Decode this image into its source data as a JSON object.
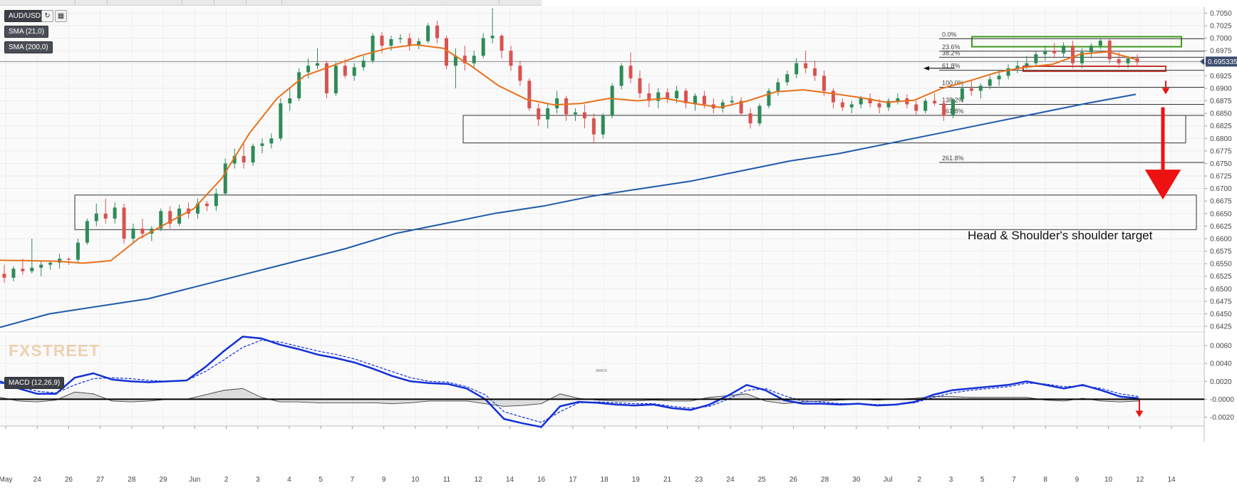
{
  "header": {
    "symbol": "AUD/USD",
    "sma_fast": "SMA (21,0)",
    "sma_slow": "SMA (200,0)",
    "macd_label": "MACD (12,26,9)",
    "watermark": "FXSTREET",
    "current_price": "0.695335"
  },
  "colors": {
    "sma_fast": "#e8711d",
    "sma_slow": "#1f5aa8",
    "candle_up": "#2e8b57",
    "candle_down": "#d9534f",
    "macd_line": "#1330d6",
    "signal_line": "#1330d6",
    "arrow": "#ee1111",
    "resistance_box": "#3d9a1c",
    "neckline_box": "#c0392b"
  },
  "chart_data": [
    {
      "type": "line",
      "title": "AUD/USD",
      "xlabel": "",
      "ylabel": "",
      "y_ticks": [
        "0.7050",
        "0.7025",
        "0.7000",
        "0.6975",
        "0.6950",
        "0.6925",
        "0.6900",
        "0.6875",
        "0.6850",
        "0.6825",
        "0.6800",
        "0.6775",
        "0.6750",
        "0.6725",
        "0.6700",
        "0.6675",
        "0.6650",
        "0.6625",
        "0.6600",
        "0.6575",
        "0.6550",
        "0.6525",
        "0.6500",
        "0.6475",
        "0.6450",
        "0.6425"
      ],
      "x_ticks": [
        "May",
        "24",
        "26",
        "27",
        "28",
        "29",
        "Jun",
        "2",
        "3",
        "4",
        "5",
        "7",
        "9",
        "10",
        "11",
        "12",
        "14",
        "16",
        "17",
        "18",
        "19",
        "21",
        "23",
        "24",
        "25",
        "26",
        "28",
        "30",
        "Jul",
        "2",
        "3",
        "5",
        "7",
        "8",
        "9",
        "10",
        "12",
        "14"
      ],
      "ylim": [
        0.6418,
        0.7062
      ],
      "series": [
        {
          "name": "SMA (21,0)",
          "y": [
            0.6557,
            0.6556,
            0.6555,
            0.6551,
            0.6556,
            0.66,
            0.663,
            0.666,
            0.672,
            0.681,
            0.688,
            0.6925,
            0.6945,
            0.6965,
            0.698,
            0.6987,
            0.698,
            0.6945,
            0.6905,
            0.6878,
            0.6867,
            0.687,
            0.688,
            0.6875,
            0.688,
            0.687,
            0.6862,
            0.6875,
            0.6893,
            0.6897,
            0.689,
            0.6882,
            0.6872,
            0.6876,
            0.69,
            0.6915,
            0.6932,
            0.6942,
            0.6948,
            0.6968,
            0.6973,
            0.6958
          ]
        },
        {
          "name": "SMA (200,0)",
          "y": [
            0.6423,
            0.645,
            0.6465,
            0.648,
            0.6505,
            0.653,
            0.6555,
            0.658,
            0.661,
            0.663,
            0.665,
            0.6665,
            0.6685,
            0.67,
            0.6715,
            0.6735,
            0.6755,
            0.677,
            0.679,
            0.681,
            0.683,
            0.685,
            0.687,
            0.6888
          ]
        }
      ],
      "annotations": [
        "Head & Shoulder's shoulder target"
      ],
      "fibonacci": [
        {
          "label": "0.0%",
          "price": 0.6999
        },
        {
          "label": "23.6%",
          "price": 0.6974
        },
        {
          "label": "38.2%",
          "price": 0.6962
        },
        {
          "label": "61.8%",
          "price": 0.6936
        },
        {
          "label": "100.0%",
          "price": 0.6902
        },
        {
          "label": "138.2%",
          "price": 0.6868
        },
        {
          "label": "161.8%",
          "price": 0.6846
        },
        {
          "label": "261.8%",
          "price": 0.6752
        }
      ],
      "candles": [
        [
          0.653,
          0.6548,
          0.6512,
          0.6522
        ],
        [
          0.6522,
          0.6545,
          0.6515,
          0.654
        ],
        [
          0.654,
          0.656,
          0.6528,
          0.6535
        ],
        [
          0.6535,
          0.66,
          0.653,
          0.6542
        ],
        [
          0.6542,
          0.6555,
          0.6525,
          0.6548
        ],
        [
          0.6548,
          0.6556,
          0.6538,
          0.6552
        ],
        [
          0.6552,
          0.657,
          0.654,
          0.656
        ],
        [
          0.656,
          0.6562,
          0.6548,
          0.6558
        ],
        [
          0.6558,
          0.66,
          0.6552,
          0.6592
        ],
        [
          0.6592,
          0.664,
          0.6588,
          0.6635
        ],
        [
          0.6635,
          0.667,
          0.6625,
          0.665
        ],
        [
          0.665,
          0.668,
          0.663,
          0.664
        ],
        [
          0.664,
          0.6672,
          0.663,
          0.6662
        ],
        [
          0.6662,
          0.667,
          0.659,
          0.66
        ],
        [
          0.66,
          0.663,
          0.659,
          0.662
        ],
        [
          0.662,
          0.664,
          0.66,
          0.661
        ],
        [
          0.661,
          0.6625,
          0.6595,
          0.662
        ],
        [
          0.662,
          0.666,
          0.6615,
          0.6655
        ],
        [
          0.6655,
          0.6665,
          0.662,
          0.663
        ],
        [
          0.663,
          0.6668,
          0.6625,
          0.666
        ],
        [
          0.666,
          0.6672,
          0.664,
          0.665
        ],
        [
          0.665,
          0.668,
          0.664,
          0.667
        ],
        [
          0.667,
          0.6675,
          0.6655,
          0.6665
        ],
        [
          0.6665,
          0.67,
          0.6655,
          0.669
        ],
        [
          0.669,
          0.676,
          0.6688,
          0.675
        ],
        [
          0.675,
          0.678,
          0.674,
          0.6765
        ],
        [
          0.6765,
          0.679,
          0.674,
          0.6752
        ],
        [
          0.6752,
          0.679,
          0.6745,
          0.6785
        ],
        [
          0.6785,
          0.68,
          0.677,
          0.679
        ],
        [
          0.679,
          0.681,
          0.678,
          0.68
        ],
        [
          0.68,
          0.688,
          0.6795,
          0.687
        ],
        [
          0.687,
          0.69,
          0.6855,
          0.688
        ],
        [
          0.688,
          0.694,
          0.6875,
          0.6932
        ],
        [
          0.6932,
          0.696,
          0.692,
          0.6945
        ],
        [
          0.6945,
          0.698,
          0.6938,
          0.695
        ],
        [
          0.695,
          0.6955,
          0.688,
          0.689
        ],
        [
          0.689,
          0.6952,
          0.6885,
          0.6945
        ],
        [
          0.6945,
          0.6958,
          0.692,
          0.6925
        ],
        [
          0.6925,
          0.695,
          0.6915,
          0.6942
        ],
        [
          0.6942,
          0.6965,
          0.6935,
          0.6955
        ],
        [
          0.6955,
          0.701,
          0.695,
          0.7005
        ],
        [
          0.7005,
          0.7012,
          0.697,
          0.6985
        ],
        [
          0.6985,
          0.7005,
          0.6975,
          0.6998
        ],
        [
          0.6998,
          0.7008,
          0.699,
          0.7
        ],
        [
          0.7,
          0.701,
          0.6975,
          0.6985
        ],
        [
          0.6985,
          0.7,
          0.6978,
          0.6994
        ],
        [
          0.6994,
          0.703,
          0.699,
          0.7025
        ],
        [
          0.7025,
          0.7035,
          0.699,
          0.7
        ],
        [
          0.7,
          0.7005,
          0.6938,
          0.6945
        ],
        [
          0.6945,
          0.698,
          0.69,
          0.6965
        ],
        [
          0.6965,
          0.6985,
          0.6935,
          0.695
        ],
        [
          0.695,
          0.6975,
          0.694,
          0.6965
        ],
        [
          0.6965,
          0.701,
          0.696,
          0.7
        ],
        [
          0.7,
          0.706,
          0.699,
          0.7005
        ],
        [
          0.7005,
          0.7008,
          0.696,
          0.6975
        ],
        [
          0.6975,
          0.6985,
          0.6935,
          0.6945
        ],
        [
          0.6945,
          0.6955,
          0.6905,
          0.6915
        ],
        [
          0.6915,
          0.692,
          0.6855,
          0.686
        ],
        [
          0.686,
          0.687,
          0.6825,
          0.6838
        ],
        [
          0.6838,
          0.687,
          0.682,
          0.686
        ],
        [
          0.686,
          0.6895,
          0.685,
          0.688
        ],
        [
          0.688,
          0.6885,
          0.6835,
          0.6848
        ],
        [
          0.6848,
          0.686,
          0.6835,
          0.6852
        ],
        [
          0.6852,
          0.6868,
          0.682,
          0.684
        ],
        [
          0.684,
          0.685,
          0.679,
          0.6808
        ],
        [
          0.6808,
          0.685,
          0.68,
          0.6845
        ],
        [
          0.6845,
          0.691,
          0.684,
          0.6905
        ],
        [
          0.6905,
          0.695,
          0.6898,
          0.6945
        ],
        [
          0.6945,
          0.6972,
          0.691,
          0.692
        ],
        [
          0.692,
          0.6935,
          0.688,
          0.689
        ],
        [
          0.689,
          0.691,
          0.6862,
          0.6875
        ],
        [
          0.6875,
          0.69,
          0.686,
          0.6892
        ],
        [
          0.6892,
          0.69,
          0.687,
          0.688
        ],
        [
          0.688,
          0.6905,
          0.687,
          0.6895
        ],
        [
          0.6895,
          0.69,
          0.686,
          0.687
        ],
        [
          0.687,
          0.689,
          0.6855,
          0.6885
        ],
        [
          0.6885,
          0.6895,
          0.686,
          0.6868
        ],
        [
          0.6868,
          0.688,
          0.685,
          0.686
        ],
        [
          0.686,
          0.6878,
          0.6852,
          0.6872
        ],
        [
          0.6872,
          0.6885,
          0.6865,
          0.6875
        ],
        [
          0.6875,
          0.6882,
          0.6845,
          0.685
        ],
        [
          0.685,
          0.686,
          0.682,
          0.683
        ],
        [
          0.683,
          0.687,
          0.6825,
          0.6865
        ],
        [
          0.6865,
          0.69,
          0.686,
          0.6895
        ],
        [
          0.6895,
          0.692,
          0.6885,
          0.6912
        ],
        [
          0.6912,
          0.6935,
          0.6905,
          0.6928
        ],
        [
          0.6928,
          0.696,
          0.692,
          0.695
        ],
        [
          0.695,
          0.6975,
          0.693,
          0.694
        ],
        [
          0.694,
          0.6955,
          0.6915,
          0.6925
        ],
        [
          0.6925,
          0.6935,
          0.6885,
          0.6895
        ],
        [
          0.6895,
          0.69,
          0.686,
          0.6872
        ],
        [
          0.6872,
          0.688,
          0.6855,
          0.6862
        ],
        [
          0.6862,
          0.6875,
          0.685,
          0.6868
        ],
        [
          0.6868,
          0.6885,
          0.686,
          0.688
        ],
        [
          0.688,
          0.689,
          0.6862,
          0.687
        ],
        [
          0.687,
          0.6878,
          0.685,
          0.6862
        ],
        [
          0.6862,
          0.688,
          0.6855,
          0.6875
        ],
        [
          0.6875,
          0.689,
          0.6868,
          0.688
        ],
        [
          0.688,
          0.6888,
          0.686,
          0.6868
        ],
        [
          0.6868,
          0.6875,
          0.6845,
          0.6855
        ],
        [
          0.6855,
          0.688,
          0.685,
          0.6875
        ],
        [
          0.6875,
          0.689,
          0.6865,
          0.687
        ],
        [
          0.687,
          0.688,
          0.6835,
          0.6845
        ],
        [
          0.6845,
          0.688,
          0.684,
          0.6878
        ],
        [
          0.6878,
          0.6905,
          0.6872,
          0.69
        ],
        [
          0.69,
          0.6915,
          0.6885,
          0.6895
        ],
        [
          0.6895,
          0.691,
          0.688,
          0.6905
        ],
        [
          0.6905,
          0.6925,
          0.6898,
          0.6918
        ],
        [
          0.6918,
          0.6935,
          0.6905,
          0.6925
        ],
        [
          0.6925,
          0.6948,
          0.6918,
          0.694
        ],
        [
          0.694,
          0.6955,
          0.693,
          0.6945
        ],
        [
          0.6945,
          0.6965,
          0.6938,
          0.695
        ],
        [
          0.695,
          0.6975,
          0.6945,
          0.6968
        ],
        [
          0.6968,
          0.6985,
          0.6955,
          0.6975
        ],
        [
          0.6975,
          0.699,
          0.696,
          0.697
        ],
        [
          0.697,
          0.6992,
          0.6962,
          0.6985
        ],
        [
          0.6985,
          0.6995,
          0.694,
          0.695
        ],
        [
          0.695,
          0.698,
          0.694,
          0.6972
        ],
        [
          0.6972,
          0.699,
          0.696,
          0.6985
        ],
        [
          0.6985,
          0.7,
          0.6978,
          0.6995
        ],
        [
          0.6995,
          0.7,
          0.695,
          0.6958
        ],
        [
          0.6958,
          0.6972,
          0.694,
          0.695
        ],
        [
          0.695,
          0.6965,
          0.694,
          0.696
        ],
        [
          0.696,
          0.6968,
          0.6942,
          0.6952
        ]
      ]
    },
    {
      "type": "line",
      "title": "MACD (12,26,9)",
      "xlabel": "",
      "ylabel": "",
      "y_ticks": [
        "0.0060",
        "0.0040",
        "0.0020",
        "-0.0000",
        "-0.0020"
      ],
      "ylim": [
        -0.003,
        0.0072
      ],
      "series": [
        {
          "name": "MACD",
          "y": [
            0.002,
            0.0012,
            0.0006,
            0.0006,
            0.0024,
            0.0029,
            0.0022,
            0.002,
            0.0019,
            0.002,
            0.0021,
            0.0036,
            0.0054,
            0.007,
            0.0068,
            0.0061,
            0.0056,
            0.005,
            0.0046,
            0.0041,
            0.0034,
            0.0026,
            0.002,
            0.0018,
            0.0017,
            0.0012,
            0.0,
            -0.0022,
            -0.0027,
            -0.0031,
            -0.0008,
            -0.0003,
            -0.0004,
            -0.0006,
            -0.0007,
            -0.0006,
            -0.001,
            -0.0012,
            -0.0006,
            0.0004,
            0.0016,
            0.001,
            -0.0001,
            -0.0005,
            -0.0005,
            -0.0006,
            -0.0005,
            -0.0007,
            -0.0006,
            -0.0003,
            0.0005,
            0.001,
            0.0012,
            0.0014,
            0.0016,
            0.002,
            0.0016,
            0.0012,
            0.0016,
            0.001,
            0.0003,
            0.0001
          ]
        },
        {
          "name": "Signal",
          "y": [
            0.0018,
            0.0014,
            0.0009,
            0.0007,
            0.0016,
            0.0023,
            0.0024,
            0.0023,
            0.0021,
            0.002,
            0.0021,
            0.0031,
            0.0044,
            0.0058,
            0.0066,
            0.0064,
            0.0059,
            0.0054,
            0.005,
            0.0045,
            0.0038,
            0.0031,
            0.0024,
            0.002,
            0.0019,
            0.0014,
            0.0005,
            -0.0014,
            -0.002,
            -0.0026,
            -0.0014,
            -0.0004,
            -0.0003,
            -0.0004,
            -0.0005,
            -0.0005,
            -0.0008,
            -0.001,
            -0.0008,
            0.0,
            0.001,
            0.0012,
            0.0004,
            -0.0002,
            -0.0003,
            -0.0005,
            -0.0005,
            -0.0006,
            -0.0006,
            -0.0004,
            0.0002,
            0.0007,
            0.001,
            0.0012,
            0.0014,
            0.0018,
            0.0017,
            0.0014,
            0.0015,
            0.0012,
            0.0006,
            0.0003
          ]
        },
        {
          "name": "Histogram",
          "y": [
            0.0002,
            -0.0002,
            -0.0003,
            -0.0001,
            0.0008,
            0.0006,
            -0.0002,
            -0.0003,
            -0.0002,
            0.0,
            0.0,
            0.0005,
            0.001,
            0.0012,
            0.0002,
            -0.0003,
            -0.0003,
            -0.0004,
            -0.0004,
            -0.0004,
            -0.0004,
            -0.0005,
            -0.0004,
            -0.0002,
            -0.0002,
            -0.0002,
            -0.0005,
            -0.0008,
            -0.0007,
            -0.0005,
            0.0006,
            0.0001,
            -0.0001,
            -0.0002,
            -0.0002,
            -0.0001,
            -0.0002,
            -0.0002,
            0.0002,
            0.0004,
            0.0006,
            -0.0002,
            -0.0005,
            -0.0003,
            -0.0002,
            -0.0001,
            0.0,
            -0.0001,
            0.0,
            0.0001,
            0.0003,
            0.0003,
            0.0002,
            0.0002,
            0.0002,
            0.0002,
            -0.0001,
            -0.0002,
            0.0001,
            -0.0002,
            -0.0003,
            -0.0002
          ]
        }
      ]
    }
  ]
}
